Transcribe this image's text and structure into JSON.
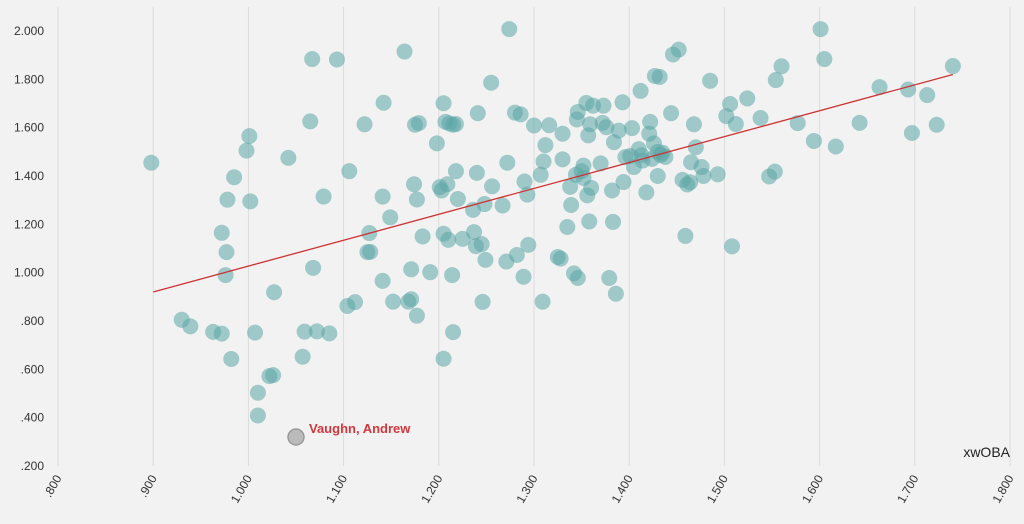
{
  "chart_data": {
    "type": "scatter",
    "title": "",
    "xlabel": "xwOBA",
    "ylabel": "",
    "xlim": [
      0.8,
      1.8
    ],
    "ylim": [
      0.2,
      2.05
    ],
    "x_ticks": [
      ".800",
      ".900",
      "1.000",
      "1.100",
      "1.200",
      "1.300",
      "1.400",
      "1.500",
      "1.600",
      "1.700",
      "1.800"
    ],
    "y_ticks": [
      ".200",
      ".400",
      ".600",
      ".800",
      "1.000",
      "1.200",
      "1.400",
      "1.600",
      "1.800",
      "2.000"
    ],
    "grid": "vertical",
    "point_color": "#5ba5a5",
    "trend_color": "#cc3333",
    "annotation_color": "#d0383e",
    "trendline": {
      "x": [
        0.9,
        1.74
      ],
      "y": [
        0.92,
        1.82
      ]
    },
    "annotation": {
      "label": "Vaughn, Andrew",
      "x": 1.05,
      "y": 0.32,
      "point_color": "#bbbbbb"
    },
    "points": [
      [
        0.898,
        1.455
      ],
      [
        0.93,
        0.805
      ],
      [
        0.939,
        0.778
      ],
      [
        0.963,
        0.755
      ],
      [
        0.972,
        0.748
      ],
      [
        0.972,
        1.165
      ],
      [
        0.976,
        0.99
      ],
      [
        0.977,
        1.085
      ],
      [
        0.978,
        1.302
      ],
      [
        0.982,
        0.643
      ],
      [
        0.985,
        1.395
      ],
      [
        0.998,
        1.505
      ],
      [
        1.001,
        1.565
      ],
      [
        1.002,
        1.295
      ],
      [
        1.007,
        0.752
      ],
      [
        1.01,
        0.503
      ],
      [
        1.01,
        0.409
      ],
      [
        1.022,
        0.572
      ],
      [
        1.026,
        0.576
      ],
      [
        1.027,
        0.919
      ],
      [
        1.042,
        1.475
      ],
      [
        1.057,
        0.652
      ],
      [
        1.059,
        0.756
      ],
      [
        1.065,
        1.626
      ],
      [
        1.067,
        1.884
      ],
      [
        1.068,
        1.02
      ],
      [
        1.072,
        0.757
      ],
      [
        1.079,
        1.315
      ],
      [
        1.085,
        0.749
      ],
      [
        1.093,
        1.882
      ],
      [
        1.104,
        0.862
      ],
      [
        1.106,
        1.42
      ],
      [
        1.112,
        0.878
      ],
      [
        1.122,
        1.614
      ],
      [
        1.125,
        1.085
      ],
      [
        1.127,
        1.164
      ],
      [
        1.128,
        1.086
      ],
      [
        1.141,
        0.966
      ],
      [
        1.141,
        1.315
      ],
      [
        1.142,
        1.703
      ],
      [
        1.149,
        1.229
      ],
      [
        1.152,
        0.88
      ],
      [
        1.164,
        1.915
      ],
      [
        1.168,
        0.88
      ],
      [
        1.171,
        0.89
      ],
      [
        1.171,
        1.014
      ],
      [
        1.174,
        1.366
      ],
      [
        1.175,
        1.612
      ],
      [
        1.177,
        0.822
      ],
      [
        1.177,
        1.303
      ],
      [
        1.179,
        1.619
      ],
      [
        1.183,
        1.15
      ],
      [
        1.191,
        1.002
      ],
      [
        1.198,
        1.535
      ],
      [
        1.201,
        1.354
      ],
      [
        1.203,
        1.34
      ],
      [
        1.205,
        1.701
      ],
      [
        1.205,
        1.161
      ],
      [
        1.205,
        0.644
      ],
      [
        1.207,
        1.624
      ],
      [
        1.209,
        1.366
      ],
      [
        1.21,
        1.136
      ],
      [
        1.211,
        1.618
      ],
      [
        1.214,
        0.99
      ],
      [
        1.215,
        1.612
      ],
      [
        1.215,
        0.754
      ],
      [
        1.218,
        1.615
      ],
      [
        1.218,
        1.42
      ],
      [
        1.22,
        1.305
      ],
      [
        1.225,
        1.14
      ],
      [
        1.236,
        1.26
      ],
      [
        1.237,
        1.168
      ],
      [
        1.239,
        1.11
      ],
      [
        1.24,
        1.413
      ],
      [
        1.241,
        1.66
      ],
      [
        1.245,
        1.118
      ],
      [
        1.246,
        0.879
      ],
      [
        1.248,
        1.284
      ],
      [
        1.249,
        1.053
      ],
      [
        1.255,
        1.786
      ],
      [
        1.256,
        1.357
      ],
      [
        1.267,
        1.278
      ],
      [
        1.271,
        1.046
      ],
      [
        1.272,
        1.455
      ],
      [
        1.274,
        2.008
      ],
      [
        1.28,
        1.662
      ],
      [
        1.282,
        1.073
      ],
      [
        1.286,
        1.655
      ],
      [
        1.289,
        0.983
      ],
      [
        1.29,
        1.377
      ],
      [
        1.293,
        1.323
      ],
      [
        1.294,
        1.115
      ],
      [
        1.3,
        1.609
      ],
      [
        1.307,
        1.405
      ],
      [
        1.309,
        0.88
      ],
      [
        1.31,
        1.46
      ],
      [
        1.312,
        1.528
      ],
      [
        1.316,
        1.61
      ],
      [
        1.325,
        1.065
      ],
      [
        1.328,
        1.058
      ],
      [
        1.33,
        1.469
      ],
      [
        1.33,
        1.575
      ],
      [
        1.335,
        1.189
      ],
      [
        1.338,
        1.355
      ],
      [
        1.339,
        1.28
      ],
      [
        1.342,
        0.997
      ],
      [
        1.344,
        1.405
      ],
      [
        1.345,
        1.634
      ],
      [
        1.346,
        1.665
      ],
      [
        1.346,
        0.978
      ],
      [
        1.35,
        1.42
      ],
      [
        1.352,
        1.443
      ],
      [
        1.352,
        1.392
      ],
      [
        1.355,
        1.702
      ],
      [
        1.356,
        1.32
      ],
      [
        1.357,
        1.568
      ],
      [
        1.358,
        1.212
      ],
      [
        1.359,
        1.614
      ],
      [
        1.36,
        1.351
      ],
      [
        1.362,
        1.691
      ],
      [
        1.37,
        1.452
      ],
      [
        1.372,
        1.62
      ],
      [
        1.373,
        1.691
      ],
      [
        1.376,
        1.602
      ],
      [
        1.379,
        0.978
      ],
      [
        1.382,
        1.34
      ],
      [
        1.383,
        1.21
      ],
      [
        1.384,
        1.54
      ],
      [
        1.386,
        0.913
      ],
      [
        1.389,
        1.588
      ],
      [
        1.393,
        1.705
      ],
      [
        1.394,
        1.375
      ],
      [
        1.396,
        1.478
      ],
      [
        1.401,
        1.483
      ],
      [
        1.403,
        1.598
      ],
      [
        1.405,
        1.437
      ],
      [
        1.41,
        1.511
      ],
      [
        1.412,
        1.752
      ],
      [
        1.413,
        1.486
      ],
      [
        1.414,
        1.464
      ],
      [
        1.418,
        1.332
      ],
      [
        1.421,
        1.575
      ],
      [
        1.422,
        1.624
      ],
      [
        1.424,
        1.471
      ],
      [
        1.426,
        1.535
      ],
      [
        1.427,
        1.814
      ],
      [
        1.43,
        1.5
      ],
      [
        1.43,
        1.4
      ],
      [
        1.432,
        1.81
      ],
      [
        1.433,
        1.487
      ],
      [
        1.435,
        1.496
      ],
      [
        1.438,
        1.479
      ],
      [
        1.444,
        1.66
      ],
      [
        1.446,
        1.903
      ],
      [
        1.452,
        1.923
      ],
      [
        1.456,
        1.384
      ],
      [
        1.459,
        1.152
      ],
      [
        1.461,
        1.365
      ],
      [
        1.464,
        1.374
      ],
      [
        1.465,
        1.457
      ],
      [
        1.468,
        1.614
      ],
      [
        1.47,
        1.519
      ],
      [
        1.476,
        1.437
      ],
      [
        1.478,
        1.4
      ],
      [
        1.485,
        1.794
      ],
      [
        1.493,
        1.407
      ],
      [
        1.502,
        1.648
      ],
      [
        1.506,
        1.698
      ],
      [
        1.508,
        1.109
      ],
      [
        1.512,
        1.615
      ],
      [
        1.524,
        1.721
      ],
      [
        1.538,
        1.64
      ],
      [
        1.547,
        1.398
      ],
      [
        1.553,
        1.418
      ],
      [
        1.554,
        1.797
      ],
      [
        1.56,
        1.854
      ],
      [
        1.577,
        1.619
      ],
      [
        1.594,
        1.545
      ],
      [
        1.601,
        2.008
      ],
      [
        1.605,
        1.884
      ],
      [
        1.617,
        1.522
      ],
      [
        1.642,
        1.62
      ],
      [
        1.663,
        1.768
      ],
      [
        1.693,
        1.758
      ],
      [
        1.697,
        1.578
      ],
      [
        1.713,
        1.735
      ],
      [
        1.723,
        1.612
      ],
      [
        1.74,
        1.855
      ]
    ]
  }
}
